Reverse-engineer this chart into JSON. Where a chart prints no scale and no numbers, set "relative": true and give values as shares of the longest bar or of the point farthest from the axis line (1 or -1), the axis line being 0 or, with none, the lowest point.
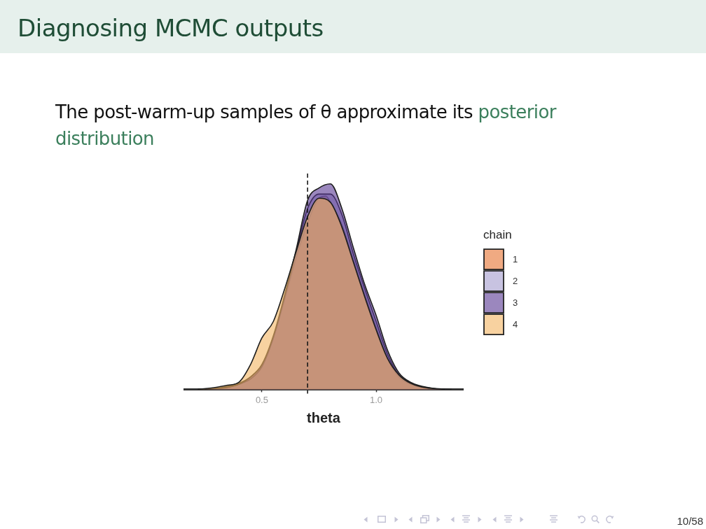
{
  "chart_data": {
    "type": "area",
    "title": "Diagnosing MCMC outputs",
    "subtitle": "The post-warm-up samples of θ approximate its posterior distribution",
    "xlabel": "theta",
    "legend_title": "chain",
    "legend": "right",
    "relative": true,
    "xlim": [
      0.16,
      1.38
    ],
    "xticks": [
      0.5,
      {
        "value": 1,
        "label": "1.0"
      }
    ],
    "ref_lines": [
      {
        "axis": "x",
        "value": 0.7,
        "line_style": "dashed"
      }
    ],
    "annotations": [
      "10/58"
    ],
    "series": [
      {
        "name": "1",
        "color": "#f0aa82",
        "x": [
          0.22,
          0.3,
          0.35,
          0.4,
          0.45,
          0.5,
          0.55,
          0.6,
          0.65,
          0.7,
          0.75,
          0.78,
          0.8,
          0.85,
          0.9,
          0.95,
          1.0,
          1.05,
          1.1,
          1.15,
          1.2,
          1.25,
          1.3
        ],
        "values": [
          0,
          0.005,
          0.015,
          0.03,
          0.06,
          0.12,
          0.25,
          0.44,
          0.64,
          0.81,
          0.93,
          0.94,
          0.91,
          0.8,
          0.63,
          0.46,
          0.3,
          0.15,
          0.06,
          0.025,
          0.01,
          0.003,
          0
        ]
      },
      {
        "name": "2",
        "color": "#c8c3e1",
        "x": [
          0.25,
          0.35,
          0.4,
          0.45,
          0.5,
          0.55,
          0.6,
          0.65,
          0.7,
          0.75,
          0.8,
          0.85,
          0.9,
          0.95,
          1.0,
          1.05,
          1.1,
          1.15,
          1.2,
          1.3
        ],
        "values": [
          0,
          0.01,
          0.025,
          0.05,
          0.11,
          0.25,
          0.45,
          0.67,
          0.88,
          0.95,
          0.95,
          0.85,
          0.66,
          0.49,
          0.33,
          0.17,
          0.07,
          0.03,
          0.01,
          0
        ]
      },
      {
        "name": "3",
        "color": "#9b87be",
        "x": [
          0.25,
          0.35,
          0.4,
          0.45,
          0.5,
          0.55,
          0.6,
          0.65,
          0.7,
          0.75,
          0.8,
          0.85,
          0.9,
          0.95,
          1.0,
          1.05,
          1.1,
          1.15,
          1.2,
          1.25,
          1.33
        ],
        "values": [
          0,
          0.01,
          0.025,
          0.06,
          0.12,
          0.26,
          0.46,
          0.68,
          0.92,
          0.98,
          1,
          0.88,
          0.69,
          0.51,
          0.36,
          0.19,
          0.08,
          0.035,
          0.015,
          0.005,
          0
        ]
      },
      {
        "name": "4",
        "color": "#f8d2a0",
        "x": [
          0.22,
          0.3,
          0.35,
          0.4,
          0.45,
          0.5,
          0.55,
          0.6,
          0.65,
          0.7,
          0.75,
          0.8,
          0.85,
          0.9,
          0.95,
          1.0,
          1.05,
          1.1,
          1.15,
          1.2,
          1.25,
          1.3
        ],
        "values": [
          0,
          0.01,
          0.02,
          0.035,
          0.12,
          0.25,
          0.33,
          0.49,
          0.67,
          0.84,
          0.93,
          0.91,
          0.79,
          0.62,
          0.45,
          0.29,
          0.15,
          0.07,
          0.03,
          0.012,
          0.004,
          0
        ]
      }
    ]
  }
}
